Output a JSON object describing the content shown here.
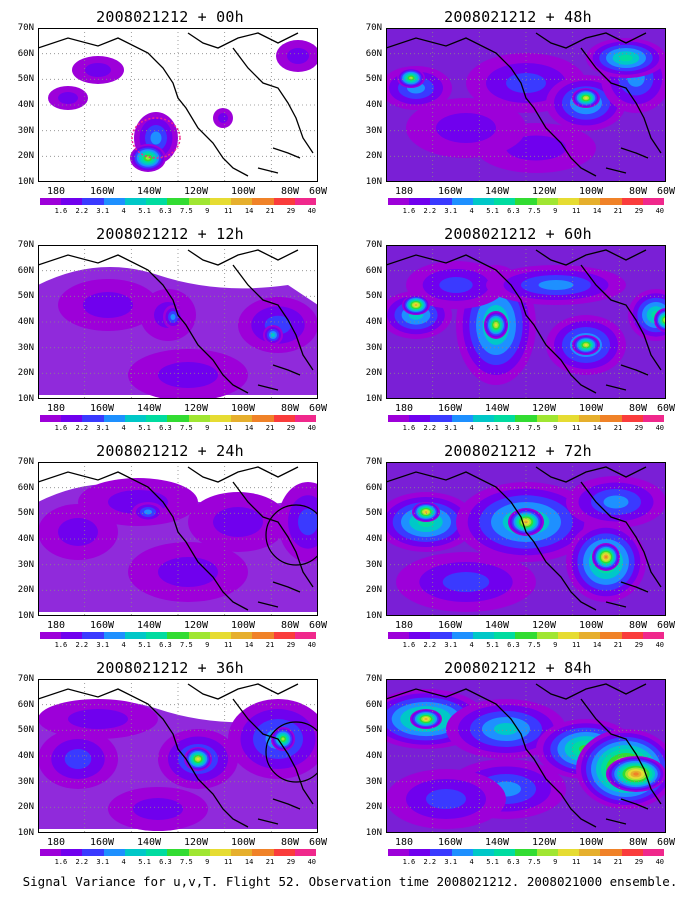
{
  "panels": [
    {
      "title": "2008021212 + 00h"
    },
    {
      "title": "2008021212 + 48h"
    },
    {
      "title": "2008021212 + 12h"
    },
    {
      "title": "2008021212 + 60h"
    },
    {
      "title": "2008021212 + 24h"
    },
    {
      "title": "2008021212 + 72h"
    },
    {
      "title": "2008021212 + 36h"
    },
    {
      "title": "2008021212 + 84h"
    }
  ],
  "axes": {
    "lat_labels": [
      "70N",
      "60N",
      "50N",
      "40N",
      "30N",
      "20N",
      "10N"
    ],
    "lon_labels": [
      "180",
      "160W",
      "140W",
      "120W",
      "100W",
      "80W",
      "60W"
    ]
  },
  "colorbar": {
    "labels": [
      "1.6",
      "2.2",
      "3.1",
      "4",
      "5.1",
      "6.3",
      "7.5",
      "9",
      "11",
      "14",
      "21",
      "29",
      "40"
    ],
    "colors": [
      "#9d00d9",
      "#7000ee",
      "#3a3aff",
      "#1e90ff",
      "#00c8c8",
      "#00dca0",
      "#32dc32",
      "#a0e632",
      "#e6dc32",
      "#e6af2d",
      "#f08228",
      "#fa3c3c",
      "#f0288c"
    ]
  },
  "caption": "Signal Variance for u,v,T. Flight 52. Observation time 2008021212. 2008021000 ensemble."
}
